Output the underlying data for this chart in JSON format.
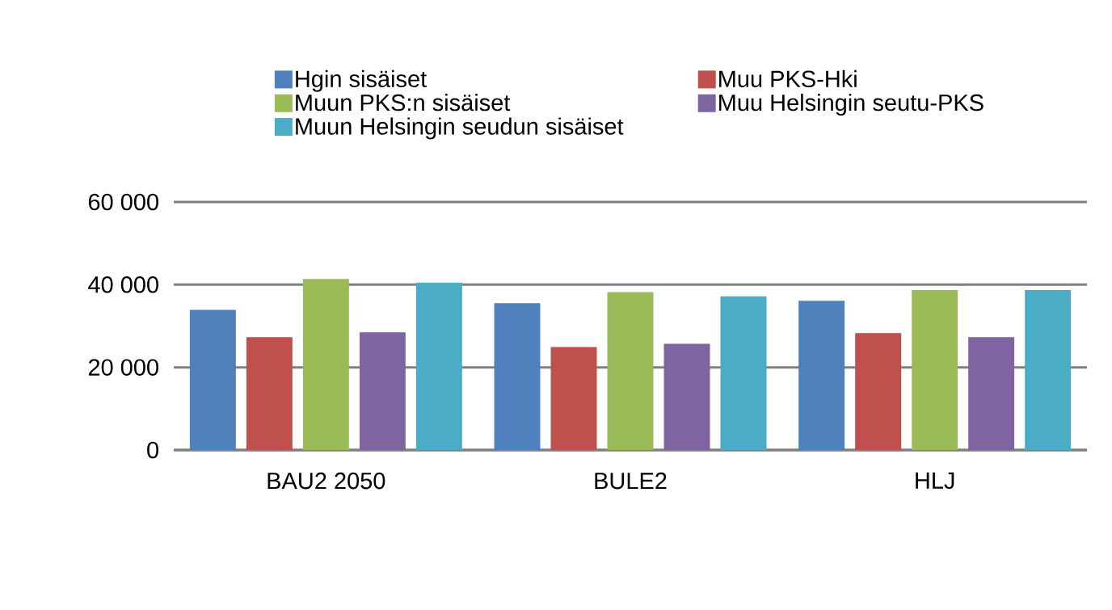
{
  "chart_data": {
    "type": "bar",
    "categories": [
      "BAU2 2050",
      "BULE2",
      "HLJ"
    ],
    "series": [
      {
        "name": "Hgin sisäiset",
        "color": "#4f81bd",
        "values": [
          33900,
          35500,
          36100
        ]
      },
      {
        "name": "Muu PKS-Hki",
        "color": "#c0504d",
        "values": [
          27300,
          24900,
          28300
        ]
      },
      {
        "name": "Muun PKS:n sisäiset",
        "color": "#9bbb59",
        "values": [
          41400,
          38200,
          38700
        ]
      },
      {
        "name": "Muu Helsingin seutu-PKS",
        "color": "#8064a2",
        "values": [
          28500,
          25700,
          27300
        ]
      },
      {
        "name": "Muun Helsingin seudun sisäiset",
        "color": "#4bacc6",
        "values": [
          40500,
          37200,
          38700
        ]
      }
    ],
    "ylim": [
      0,
      60000
    ],
    "yticks": [
      {
        "value": 0,
        "label": "0"
      },
      {
        "value": 20000,
        "label": "20 000"
      },
      {
        "value": 40000,
        "label": "40 000"
      },
      {
        "value": 60000,
        "label": "60 000"
      }
    ],
    "grid": "y",
    "legend": "top"
  }
}
